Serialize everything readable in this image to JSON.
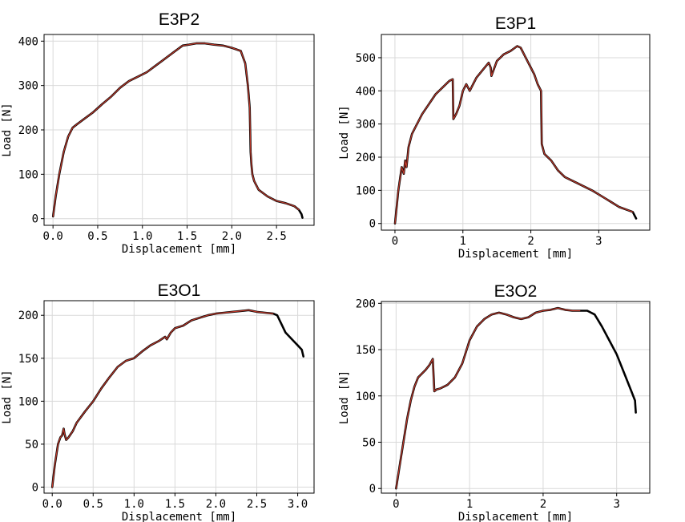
{
  "chart_data": [
    {
      "type": "line",
      "title": "E3P2",
      "xlabel": "Displacement [mm]",
      "ylabel": "Load [N]",
      "xlim": [
        -0.1,
        2.92
      ],
      "ylim": [
        -15,
        415
      ],
      "xticks": [
        0.0,
        0.5,
        1.0,
        1.5,
        2.0,
        2.5
      ],
      "xtick_labels": [
        "0.0",
        "0.5",
        "1.0",
        "1.5",
        "2.0",
        "2.5"
      ],
      "yticks": [
        0,
        100,
        200,
        300,
        400
      ],
      "ytick_labels": [
        "0",
        "100",
        "200",
        "300",
        "400"
      ],
      "grid": true,
      "series": [
        {
          "color": "#000000",
          "width": 2.6,
          "x": [
            0,
            0.03,
            0.07,
            0.12,
            0.17,
            0.22,
            0.27,
            0.35,
            0.45,
            0.55,
            0.65,
            0.75,
            0.85,
            0.95,
            1.05,
            1.15,
            1.25,
            1.35,
            1.45,
            1.52,
            1.6,
            1.7,
            1.8,
            1.9,
            2.0,
            2.1,
            2.15,
            2.18,
            2.2,
            2.21,
            2.22,
            2.23,
            2.25,
            2.3,
            2.4,
            2.5,
            2.6,
            2.7,
            2.75,
            2.78,
            2.79
          ],
          "y": [
            5,
            50,
            100,
            150,
            185,
            205,
            213,
            225,
            240,
            258,
            275,
            295,
            310,
            320,
            330,
            345,
            360,
            375,
            390,
            392,
            395,
            395,
            392,
            390,
            385,
            378,
            350,
            300,
            250,
            150,
            120,
            100,
            85,
            65,
            50,
            40,
            35,
            28,
            20,
            10,
            2
          ]
        },
        {
          "color": "#c0392b",
          "width": 1.2,
          "x": [
            0,
            0.03,
            0.07,
            0.12,
            0.17,
            0.22,
            0.27,
            0.35,
            0.45,
            0.55,
            0.65,
            0.75,
            0.85,
            0.95,
            1.05,
            1.15,
            1.25,
            1.35,
            1.45,
            1.52,
            1.6,
            1.7,
            1.8,
            1.9,
            2.0,
            2.1,
            2.15,
            2.18,
            2.2,
            2.21,
            2.22,
            2.23,
            2.25,
            2.3,
            2.4,
            2.5,
            2.6,
            2.7,
            2.75
          ],
          "y": [
            5,
            50,
            100,
            150,
            185,
            205,
            213,
            225,
            240,
            258,
            275,
            295,
            310,
            320,
            330,
            345,
            360,
            375,
            390,
            392,
            395,
            395,
            392,
            390,
            385,
            378,
            350,
            300,
            250,
            150,
            120,
            100,
            85,
            65,
            50,
            40,
            35,
            28,
            20
          ]
        }
      ]
    },
    {
      "type": "line",
      "title": "E3P1",
      "xlabel": "Displacement [mm]",
      "ylabel": "Load [N]",
      "xlim": [
        -0.2,
        3.75
      ],
      "ylim": [
        -20,
        570
      ],
      "xticks": [
        0,
        1,
        2,
        3
      ],
      "xtick_labels": [
        "0",
        "1",
        "2",
        "3"
      ],
      "yticks": [
        0,
        100,
        200,
        300,
        400,
        500
      ],
      "ytick_labels": [
        "0",
        "100",
        "200",
        "300",
        "400",
        "500"
      ],
      "grid": true,
      "series": [
        {
          "color": "#000000",
          "width": 2.6,
          "x": [
            0,
            0.05,
            0.1,
            0.13,
            0.15,
            0.17,
            0.2,
            0.25,
            0.3,
            0.4,
            0.5,
            0.6,
            0.7,
            0.8,
            0.85,
            0.86,
            0.9,
            0.95,
            1.0,
            1.05,
            1.1,
            1.15,
            1.2,
            1.3,
            1.38,
            1.41,
            1.42,
            1.5,
            1.6,
            1.7,
            1.8,
            1.85,
            1.9,
            1.95,
            2.0,
            2.05,
            2.1,
            2.15,
            2.16,
            2.2,
            2.3,
            2.4,
            2.5,
            2.7,
            2.9,
            3.1,
            3.3,
            3.5,
            3.55
          ],
          "y": [
            0,
            100,
            170,
            150,
            190,
            170,
            230,
            270,
            290,
            330,
            360,
            390,
            410,
            430,
            435,
            315,
            330,
            355,
            400,
            420,
            400,
            420,
            440,
            465,
            485,
            470,
            445,
            490,
            510,
            520,
            535,
            530,
            510,
            490,
            470,
            450,
            420,
            400,
            240,
            210,
            190,
            160,
            140,
            120,
            100,
            75,
            50,
            35,
            15
          ]
        },
        {
          "color": "#c0392b",
          "width": 1.2,
          "x": [
            0,
            0.05,
            0.1,
            0.13,
            0.15,
            0.17,
            0.2,
            0.25,
            0.3,
            0.4,
            0.5,
            0.6,
            0.7,
            0.8,
            0.85,
            0.86,
            0.9,
            0.95,
            1.0,
            1.05,
            1.1,
            1.15,
            1.2,
            1.3,
            1.38,
            1.41,
            1.42,
            1.5,
            1.6,
            1.7,
            1.8,
            1.85,
            1.9,
            1.95,
            2.0,
            2.05,
            2.1,
            2.15,
            2.16,
            2.2,
            2.3,
            2.4,
            2.5,
            2.7,
            2.9,
            3.1,
            3.3,
            3.5
          ],
          "y": [
            0,
            100,
            170,
            150,
            190,
            170,
            230,
            270,
            290,
            330,
            360,
            390,
            410,
            430,
            435,
            315,
            330,
            355,
            400,
            420,
            400,
            420,
            440,
            465,
            485,
            470,
            445,
            490,
            510,
            520,
            535,
            530,
            510,
            490,
            470,
            450,
            420,
            400,
            240,
            210,
            190,
            160,
            140,
            120,
            100,
            75,
            50,
            35
          ]
        }
      ]
    },
    {
      "type": "line",
      "title": "E3O1",
      "xlabel": "Displacement [mm]",
      "ylabel": "Load [N]",
      "xlim": [
        -0.1,
        3.2
      ],
      "ylim": [
        -7,
        217
      ],
      "xticks": [
        0.0,
        0.5,
        1.0,
        1.5,
        2.0,
        2.5,
        3.0
      ],
      "xtick_labels": [
        "0.0",
        "0.5",
        "1.0",
        "1.5",
        "2.0",
        "2.5",
        "3.0"
      ],
      "yticks": [
        0,
        50,
        100,
        150,
        200
      ],
      "ytick_labels": [
        "0",
        "50",
        "100",
        "150",
        "200"
      ],
      "grid": true,
      "series": [
        {
          "color": "#000000",
          "width": 2.6,
          "x": [
            0,
            0.03,
            0.07,
            0.1,
            0.12,
            0.14,
            0.15,
            0.17,
            0.2,
            0.25,
            0.3,
            0.4,
            0.5,
            0.6,
            0.7,
            0.8,
            0.9,
            1.0,
            1.1,
            1.2,
            1.3,
            1.38,
            1.4,
            1.45,
            1.5,
            1.6,
            1.7,
            1.8,
            1.9,
            2.0,
            2.1,
            2.2,
            2.3,
            2.4,
            2.5,
            2.6,
            2.7,
            2.75,
            2.8,
            2.85,
            2.9,
            2.95,
            3.0,
            3.05,
            3.07
          ],
          "y": [
            0,
            25,
            50,
            58,
            60,
            68,
            62,
            55,
            58,
            65,
            75,
            88,
            100,
            115,
            128,
            140,
            147,
            150,
            158,
            165,
            170,
            175,
            172,
            180,
            185,
            188,
            194,
            197,
            200,
            202,
            203,
            204,
            205,
            206,
            204,
            203,
            202,
            200,
            190,
            180,
            175,
            170,
            165,
            160,
            152
          ]
        },
        {
          "color": "#c0392b",
          "width": 1.2,
          "x": [
            0,
            0.03,
            0.07,
            0.1,
            0.12,
            0.14,
            0.15,
            0.17,
            0.2,
            0.25,
            0.3,
            0.4,
            0.5,
            0.6,
            0.7,
            0.8,
            0.9,
            1.0,
            1.1,
            1.2,
            1.3,
            1.38,
            1.4,
            1.45,
            1.5,
            1.6,
            1.7,
            1.8,
            1.9,
            2.0,
            2.1,
            2.2,
            2.3,
            2.4,
            2.5,
            2.6,
            2.7
          ],
          "y": [
            0,
            25,
            50,
            58,
            60,
            68,
            62,
            55,
            58,
            65,
            75,
            88,
            100,
            115,
            128,
            140,
            147,
            150,
            158,
            165,
            170,
            175,
            172,
            180,
            185,
            188,
            194,
            197,
            200,
            202,
            203,
            204,
            205,
            206,
            204,
            203,
            202
          ]
        }
      ]
    },
    {
      "type": "line",
      "title": "E3O2",
      "xlabel": "Displacement [mm]",
      "ylabel": "Load [N]",
      "xlim": [
        -0.2,
        3.45
      ],
      "ylim": [
        -5,
        202
      ],
      "xticks": [
        0,
        1,
        2,
        3
      ],
      "xtick_labels": [
        "0",
        "1",
        "2",
        "3"
      ],
      "yticks": [
        0,
        50,
        100,
        150,
        200
      ],
      "ytick_labels": [
        "0",
        "50",
        "100",
        "150",
        "200"
      ],
      "grid": true,
      "series": [
        {
          "color": "#000000",
          "width": 2.6,
          "x": [
            0,
            0.05,
            0.1,
            0.15,
            0.2,
            0.25,
            0.3,
            0.4,
            0.45,
            0.5,
            0.52,
            0.55,
            0.6,
            0.7,
            0.8,
            0.9,
            1.0,
            1.1,
            1.2,
            1.3,
            1.4,
            1.5,
            1.6,
            1.7,
            1.8,
            1.9,
            2.0,
            2.1,
            2.2,
            2.3,
            2.4,
            2.5,
            2.6,
            2.7,
            2.8,
            2.9,
            3.0,
            3.1,
            3.2,
            3.25,
            3.26
          ],
          "y": [
            0,
            25,
            50,
            75,
            95,
            110,
            120,
            128,
            133,
            140,
            105,
            107,
            108,
            112,
            120,
            135,
            160,
            175,
            183,
            188,
            190,
            188,
            185,
            183,
            185,
            190,
            192,
            193,
            195,
            193,
            192,
            192,
            192,
            188,
            175,
            160,
            145,
            125,
            105,
            95,
            82
          ]
        },
        {
          "color": "#c0392b",
          "width": 1.2,
          "x": [
            0,
            0.05,
            0.1,
            0.15,
            0.2,
            0.25,
            0.3,
            0.4,
            0.45,
            0.5,
            0.52,
            0.55,
            0.6,
            0.7,
            0.8,
            0.9,
            1.0,
            1.1,
            1.2,
            1.3,
            1.4,
            1.5,
            1.6,
            1.7,
            1.8,
            1.9,
            2.0,
            2.1,
            2.2,
            2.3,
            2.4,
            2.5
          ],
          "y": [
            0,
            25,
            50,
            75,
            95,
            110,
            120,
            128,
            133,
            140,
            105,
            107,
            108,
            112,
            120,
            135,
            160,
            175,
            183,
            188,
            190,
            188,
            185,
            183,
            185,
            190,
            192,
            193,
            195,
            193,
            192,
            192
          ]
        }
      ]
    }
  ]
}
